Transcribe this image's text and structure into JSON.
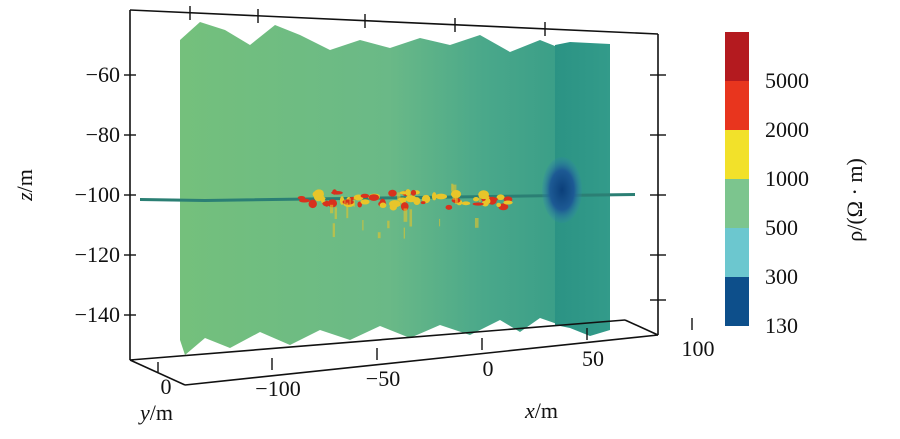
{
  "chart_data": {
    "type": "3d-surface",
    "variable": "ρ",
    "xlabel_var": "x",
    "xlabel_unit": "/m",
    "ylabel_var": "y",
    "ylabel_unit": "/m",
    "zlabel_var": "z",
    "zlabel_unit": "/m",
    "colorbar_label": "ρ/(Ω · m)",
    "x_ticks": [
      "−100",
      "−50",
      "0",
      "50",
      "100"
    ],
    "y_ticks": [
      "0"
    ],
    "z_ticks": [
      "−60",
      "−80",
      "−100",
      "−120",
      "−140"
    ],
    "colorbar": {
      "colors": [
        "#0d4f8b",
        "#6cc7cf",
        "#7cc58e",
        "#f2e12a",
        "#e8351e",
        "#b41a1f"
      ],
      "labels": [
        "130",
        "300",
        "500",
        "1000",
        "2000",
        "5000"
      ]
    },
    "features": {
      "background_color": "#6fbf80",
      "right_section_color": "#2e9a87",
      "low_resistivity_anomaly": "#0d4f8b",
      "high_resistivity_anomaly": "#d8311d",
      "mid_high_anomaly": "#e8c52a"
    }
  }
}
